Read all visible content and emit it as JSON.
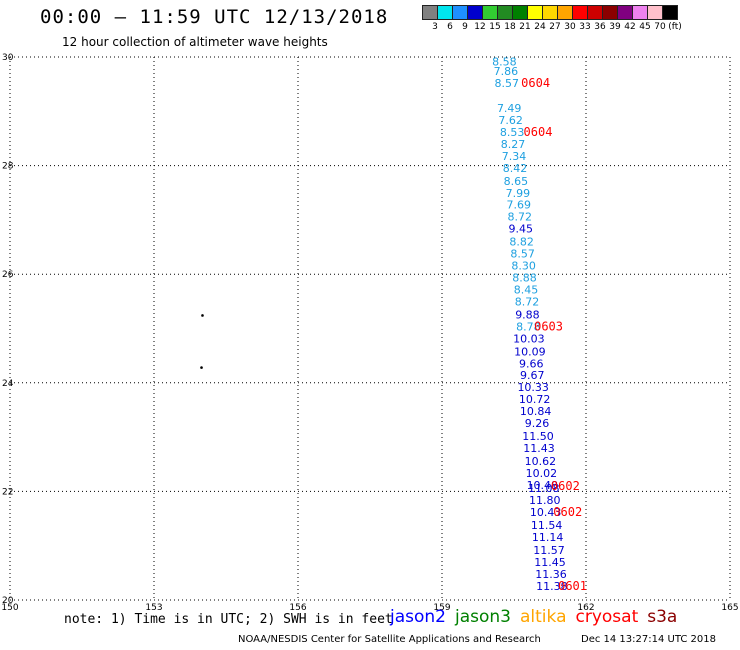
{
  "header": {
    "title": "00:00 – 11:59 UTC 12/13/2018",
    "subtitle": "12 hour collection of altimeter wave heights"
  },
  "legend": {
    "labels": [
      "3",
      "6",
      "9",
      "12",
      "15",
      "18",
      "21",
      "24",
      "27",
      "30",
      "33",
      "36",
      "39",
      "42",
      "45",
      "70",
      "(ft)"
    ],
    "colors": [
      "#808080",
      "#00e5ee",
      "#1e90ff",
      "#0000cd",
      "#32cd32",
      "#228b22",
      "#008000",
      "#ffff00",
      "#ffd700",
      "#ffa500",
      "#ff0000",
      "#cd0000",
      "#8b0000",
      "#800080",
      "#ee82ee",
      "#ffc0cb",
      "#000000"
    ]
  },
  "chart_data": {
    "type": "scatter",
    "xlim": [
      150,
      165
    ],
    "ylim": [
      20,
      30
    ],
    "x_ticks": [
      "150",
      "153",
      "156",
      "159",
      "162",
      "165"
    ],
    "y_ticks": [
      "30",
      "28",
      "26",
      "24",
      "22",
      "20"
    ],
    "grid": true,
    "points": [
      {
        "x": 160.3,
        "y": 29.92,
        "label": "8.58",
        "color": "#1ea0e0"
      },
      {
        "x": 160.33,
        "y": 29.74,
        "label": "7.86",
        "color": "#1ea0e0"
      },
      {
        "x": 160.35,
        "y": 29.52,
        "label": "8.57",
        "color": "#1ea0e0"
      },
      {
        "x": 160.4,
        "y": 29.06,
        "label": "7.49",
        "color": "#1ea0e0"
      },
      {
        "x": 160.43,
        "y": 28.84,
        "label": "7.62",
        "color": "#1ea0e0"
      },
      {
        "x": 160.46,
        "y": 28.62,
        "label": "8.53",
        "color": "#1ea0e0"
      },
      {
        "x": 160.48,
        "y": 28.4,
        "label": "8.27",
        "color": "#1ea0e0"
      },
      {
        "x": 160.5,
        "y": 28.18,
        "label": "7.34",
        "color": "#1ea0e0"
      },
      {
        "x": 160.52,
        "y": 27.96,
        "label": "8.42",
        "color": "#1ea0e0"
      },
      {
        "x": 160.54,
        "y": 27.72,
        "label": "8.65",
        "color": "#1ea0e0"
      },
      {
        "x": 160.58,
        "y": 27.5,
        "label": "7.99",
        "color": "#1ea0e0"
      },
      {
        "x": 160.6,
        "y": 27.28,
        "label": "7.69",
        "color": "#1ea0e0"
      },
      {
        "x": 160.62,
        "y": 27.06,
        "label": "8.72",
        "color": "#1ea0e0"
      },
      {
        "x": 160.64,
        "y": 26.84,
        "label": "9.45",
        "color": "#0000cd"
      },
      {
        "x": 160.66,
        "y": 26.6,
        "label": "8.82",
        "color": "#1ea0e0"
      },
      {
        "x": 160.68,
        "y": 26.38,
        "label": "8.57",
        "color": "#1ea0e0"
      },
      {
        "x": 160.7,
        "y": 26.16,
        "label": "8.30",
        "color": "#1ea0e0"
      },
      {
        "x": 160.72,
        "y": 25.94,
        "label": "8.88",
        "color": "#1ea0e0"
      },
      {
        "x": 160.75,
        "y": 25.72,
        "label": "8.45",
        "color": "#1ea0e0"
      },
      {
        "x": 160.77,
        "y": 25.5,
        "label": "8.72",
        "color": "#1ea0e0"
      },
      {
        "x": 160.78,
        "y": 25.26,
        "label": "9.88",
        "color": "#0000cd"
      },
      {
        "x": 160.8,
        "y": 25.04,
        "label": "8.78",
        "color": "#1ea0e0"
      },
      {
        "x": 160.81,
        "y": 24.82,
        "label": "10.03",
        "color": "#0000cd"
      },
      {
        "x": 160.83,
        "y": 24.58,
        "label": "10.09",
        "color": "#0000cd"
      },
      {
        "x": 160.86,
        "y": 24.36,
        "label": "9.66",
        "color": "#0000cd"
      },
      {
        "x": 160.88,
        "y": 24.14,
        "label": "9.67",
        "color": "#0000cd"
      },
      {
        "x": 160.9,
        "y": 23.92,
        "label": "10.33",
        "color": "#0000cd"
      },
      {
        "x": 160.93,
        "y": 23.7,
        "label": "10.72",
        "color": "#0000cd"
      },
      {
        "x": 160.95,
        "y": 23.48,
        "label": "10.84",
        "color": "#0000cd"
      },
      {
        "x": 160.98,
        "y": 23.26,
        "label": "9.26",
        "color": "#0000cd"
      },
      {
        "x": 161.0,
        "y": 23.02,
        "label": "11.50",
        "color": "#0000cd"
      },
      {
        "x": 161.02,
        "y": 22.8,
        "label": "11.43",
        "color": "#0000cd"
      },
      {
        "x": 161.05,
        "y": 22.56,
        "label": "10.62",
        "color": "#0000cd"
      },
      {
        "x": 161.07,
        "y": 22.34,
        "label": "10.02",
        "color": "#0000cd"
      },
      {
        "x": 161.09,
        "y": 22.12,
        "label": "10.48",
        "color": "#0000cd"
      },
      {
        "x": 161.12,
        "y": 22.06,
        "label": "11.08",
        "color": "#0000cd"
      },
      {
        "x": 161.14,
        "y": 21.84,
        "label": "11.80",
        "color": "#0000cd"
      },
      {
        "x": 161.16,
        "y": 21.62,
        "label": "10.43",
        "color": "#0000cd"
      },
      {
        "x": 161.18,
        "y": 21.38,
        "label": "11.54",
        "color": "#0000cd"
      },
      {
        "x": 161.2,
        "y": 21.16,
        "label": "11.14",
        "color": "#0000cd"
      },
      {
        "x": 161.23,
        "y": 20.92,
        "label": "11.57",
        "color": "#0000cd"
      },
      {
        "x": 161.25,
        "y": 20.7,
        "label": "11.45",
        "color": "#0000cd"
      },
      {
        "x": 161.27,
        "y": 20.48,
        "label": "11.36",
        "color": "#0000cd"
      },
      {
        "x": 161.29,
        "y": 20.26,
        "label": "11.38",
        "color": "#0000cd"
      }
    ],
    "annotations": [
      {
        "x": 160.95,
        "y": 29.52,
        "text": "0604",
        "color": "#ff0000"
      },
      {
        "x": 161.0,
        "y": 28.62,
        "text": "0604",
        "color": "#ff0000"
      },
      {
        "x": 161.22,
        "y": 25.04,
        "text": "0603",
        "color": "#ff0000"
      },
      {
        "x": 161.57,
        "y": 22.1,
        "text": "0602",
        "color": "#ff0000"
      },
      {
        "x": 161.62,
        "y": 21.62,
        "text": "0602",
        "color": "#ff0000"
      },
      {
        "x": 161.72,
        "y": 20.26,
        "text": "0601",
        "color": "#ff0000"
      }
    ],
    "land_marks": [
      {
        "x": 154.01,
        "y": 25.24
      },
      {
        "x": 153.99,
        "y": 24.28
      }
    ]
  },
  "footer": {
    "note": "note: 1) Time is in UTC; 2) SWH is in feet",
    "satellites": [
      {
        "name": "jason2",
        "color": "#0000ff"
      },
      {
        "name": "jason3",
        "color": "#008000"
      },
      {
        "name": "altika",
        "color": "#ffa500"
      },
      {
        "name": "cryosat",
        "color": "#ff0000"
      },
      {
        "name": "s3a",
        "color": "#8b0000"
      }
    ],
    "credit": "NOAA/NESDIS Center for Satellite Applications and Research",
    "timestamp": "Dec 14 13:27:14 UTC 2018"
  }
}
